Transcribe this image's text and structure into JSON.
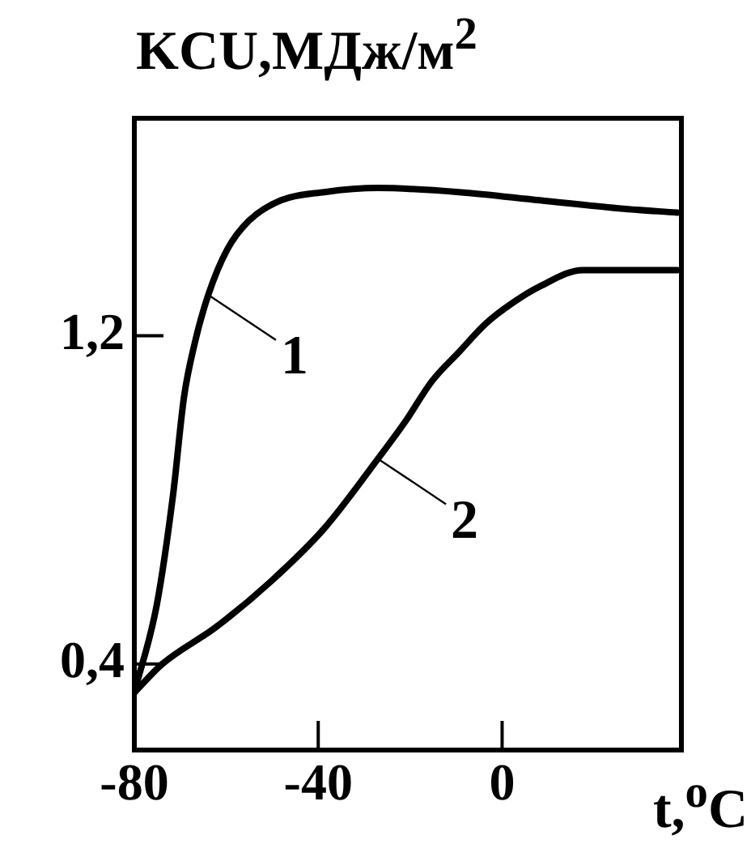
{
  "chart_data": {
    "type": "line",
    "title": "KCU,МДж/м$^{2}$",
    "xlabel": "t,$^{o}$C",
    "xlim": [
      -80,
      39
    ],
    "xticks": [
      -80,
      -40,
      0
    ],
    "ylim": [
      0.19,
      1.73
    ],
    "yticks": [
      {
        "value": 0.4,
        "label": "0,4"
      },
      {
        "value": 1.2,
        "label": "1,2"
      }
    ],
    "grid": false,
    "legend": false,
    "marker": "none",
    "line_style": "solid",
    "series": [
      {
        "color": "#000000",
        "x": [
          -80,
          -75.1,
          -71.6,
          -69.2,
          -66.9,
          -63.9,
          -59.8,
          -55.1,
          -48.1,
          -38.7,
          -27,
          -9.4,
          8.2,
          25.8,
          38.1
        ],
        "values": [
          0.33,
          0.545,
          0.81,
          1.05,
          1.18,
          1.3,
          1.41,
          1.48,
          1.53,
          1.55,
          1.56,
          1.55,
          1.53,
          1.51,
          1.5
        ]
      },
      {
        "color": "#000000",
        "x": [
          -80,
          -73.9,
          -62.2,
          -50.4,
          -38.7,
          -27,
          -21.1,
          -15.2,
          -9.4,
          -3.5,
          2.3,
          8.2,
          17.6,
          25.8,
          38.1
        ],
        "values": [
          0.33,
          0.4,
          0.49,
          0.6,
          0.73,
          0.9,
          0.99,
          1.09,
          1.16,
          1.23,
          1.28,
          1.32,
          1.36,
          1.36,
          1.36
        ]
      }
    ],
    "annotations": [
      {
        "text": "1",
        "x": -64,
        "y": 1.3
      },
      {
        "text": "2",
        "x": -27,
        "y": 0.9
      }
    ]
  }
}
